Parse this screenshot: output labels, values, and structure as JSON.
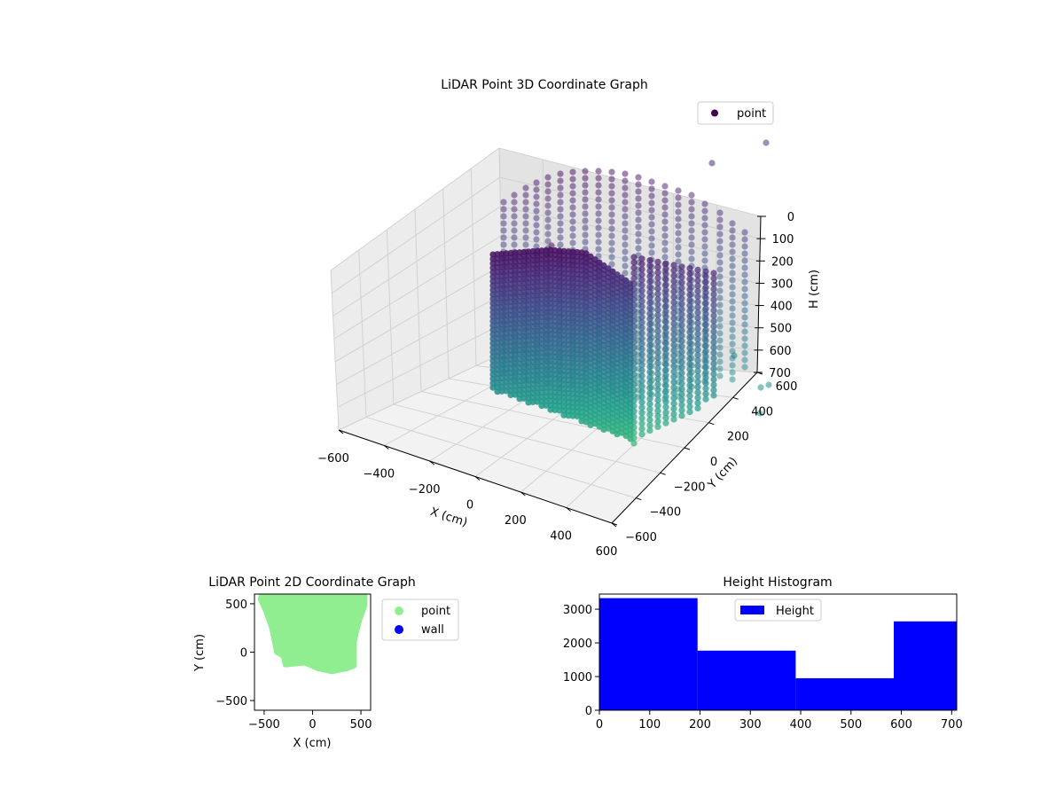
{
  "chart_data": [
    {
      "type": "scatter3d",
      "title": "LiDAR Point 3D Coordinate Graph",
      "xlabel": "X (cm)",
      "ylabel": "Y (cm)",
      "zlabel": "H (cm)",
      "x_ticks": [
        "−600",
        "−400",
        "−200",
        "0",
        "200",
        "400",
        "600"
      ],
      "y_ticks": [
        "−600",
        "−400",
        "−200",
        "0",
        "200",
        "400",
        "600"
      ],
      "z_ticks": [
        "0",
        "100",
        "200",
        "300",
        "400",
        "500",
        "600",
        "700"
      ],
      "xlim": [
        -600,
        600
      ],
      "ylim": [
        -600,
        600
      ],
      "zlim": [
        0,
        700
      ],
      "z_inverted": true,
      "colormap": "viridis",
      "legend": {
        "label": "point",
        "position": "upper-right",
        "color": "#440154"
      },
      "grid": true
    },
    {
      "type": "scatter",
      "title": "LiDAR Point 2D Coordinate Graph",
      "xlabel": "X (cm)",
      "ylabel": "Y (cm)",
      "x_ticks": [
        "−500",
        "0",
        "500"
      ],
      "y_ticks": [
        "−500",
        "0",
        "500"
      ],
      "xlim": [
        -600,
        600
      ],
      "ylim": [
        -600,
        600
      ],
      "series": [
        {
          "name": "point",
          "color": "#90ee90",
          "outline": [
            [
              -520,
              600
            ],
            [
              540,
              600
            ],
            [
              540,
              480
            ],
            [
              490,
              350
            ],
            [
              450,
              200
            ],
            [
              430,
              100
            ],
            [
              430,
              -140
            ],
            [
              350,
              -170
            ],
            [
              200,
              -200
            ],
            [
              60,
              -170
            ],
            [
              -80,
              -110
            ],
            [
              -280,
              -130
            ],
            [
              -300,
              -40
            ],
            [
              -370,
              0
            ],
            [
              -420,
              250
            ],
            [
              -480,
              420
            ],
            [
              -540,
              550
            ]
          ]
        },
        {
          "name": "wall",
          "color": "#0000ff",
          "points": []
        }
      ],
      "legend": {
        "position": "outside-right"
      }
    },
    {
      "type": "histogram",
      "title": "Height Histogram",
      "xlim": [
        0,
        710
      ],
      "ylim": [
        0,
        3450
      ],
      "x_ticks": [
        "0",
        "100",
        "200",
        "300",
        "400",
        "500",
        "600",
        "700"
      ],
      "y_ticks": [
        "0",
        "1000",
        "2000",
        "3000"
      ],
      "bins": [
        [
          0,
          195,
          3330
        ],
        [
          195,
          390,
          1770
        ],
        [
          390,
          585,
          950
        ],
        [
          585,
          710,
          2640
        ]
      ],
      "series": [
        {
          "name": "Height",
          "color": "#0000ff"
        }
      ],
      "legend": {
        "position": "upper-center"
      }
    }
  ]
}
